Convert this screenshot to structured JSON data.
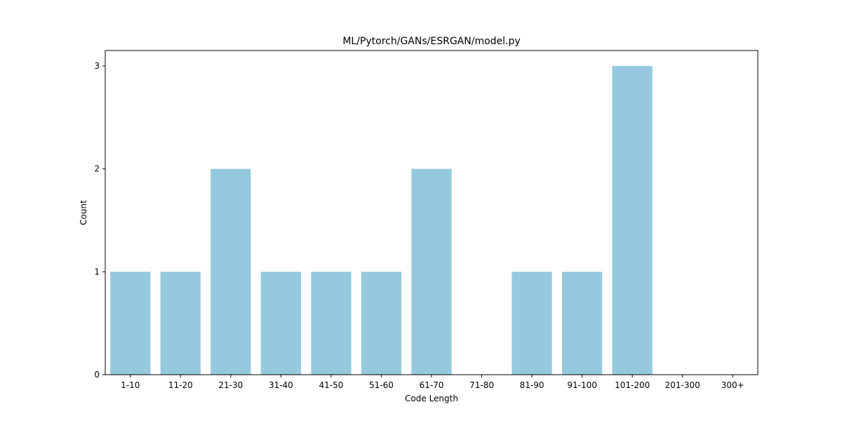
{
  "chart_data": {
    "type": "bar",
    "title": "ML/Pytorch/GANs/ESRGAN/model.py",
    "xlabel": "Code Length",
    "ylabel": "Count",
    "categories": [
      "1-10",
      "11-20",
      "21-30",
      "31-40",
      "41-50",
      "51-60",
      "61-70",
      "71-80",
      "81-90",
      "91-100",
      "101-200",
      "201-300",
      "300+"
    ],
    "values": [
      1,
      1,
      2,
      1,
      1,
      1,
      2,
      0,
      1,
      1,
      3,
      0,
      0
    ],
    "ylim": [
      0,
      3.15
    ],
    "yticks": [
      "0",
      "1",
      "2",
      "3"
    ],
    "bar_color": "#95c9de",
    "grid": false,
    "legend": "none"
  }
}
